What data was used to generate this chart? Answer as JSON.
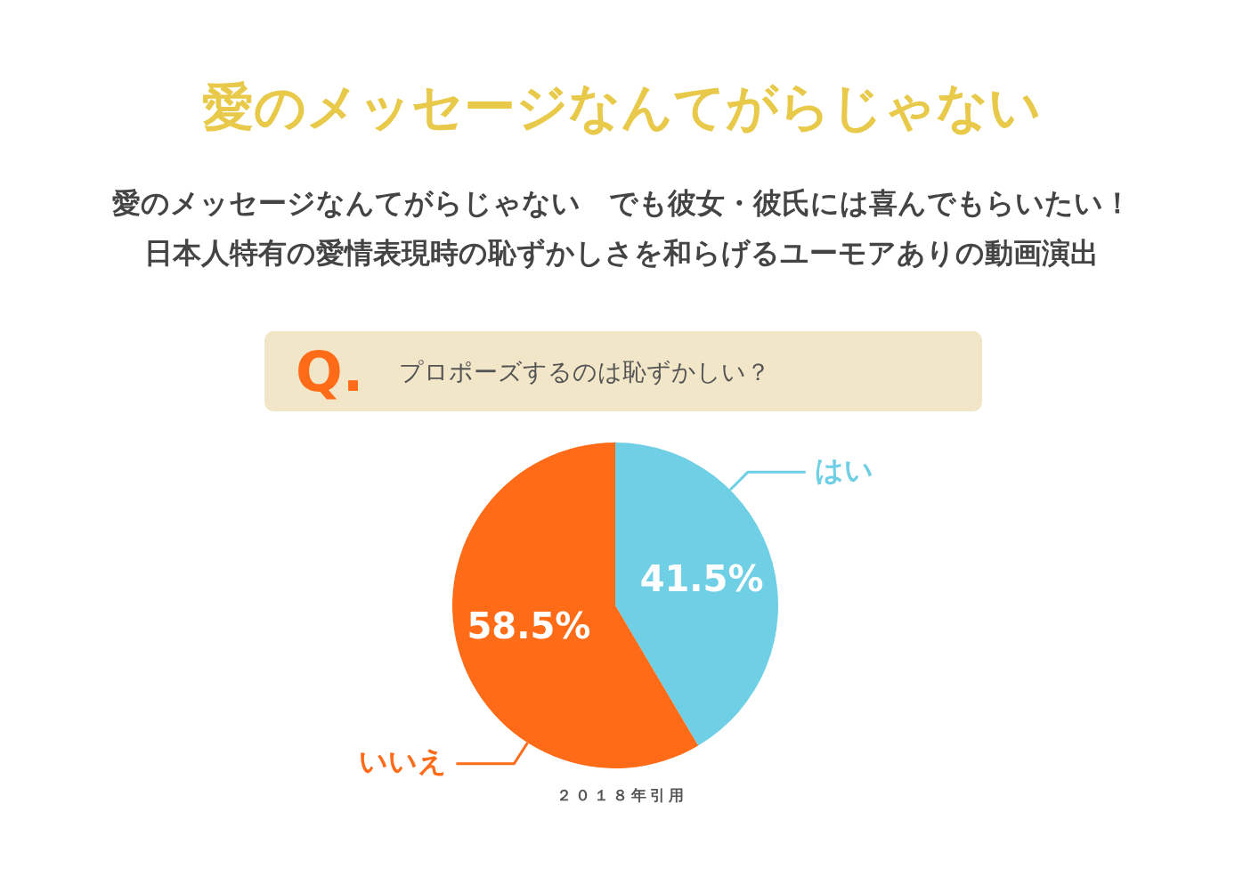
{
  "chart_data": {
    "type": "pie",
    "title": "愛のメッセージなんてがらじゃない",
    "subtitle": "愛のメッセージなんてがらじゃない　でも彼女・彼氏には喜んでもらいたい！",
    "annotations": [
      "Q.",
      "プロポーズするのは恥ずかしい？",
      "２０１８年引用",
      "日本人特有の愛情表現時の恥ずかしさを和らげるユーモアありの動画演出"
    ],
    "categories": [
      "はい",
      "いいえ"
    ],
    "values": [
      41.5,
      58.5
    ],
    "colors": [
      "#6fcfe4",
      "#ff6b17"
    ],
    "value_labels": [
      "41.5%",
      "58.5%"
    ],
    "legend": false
  }
}
